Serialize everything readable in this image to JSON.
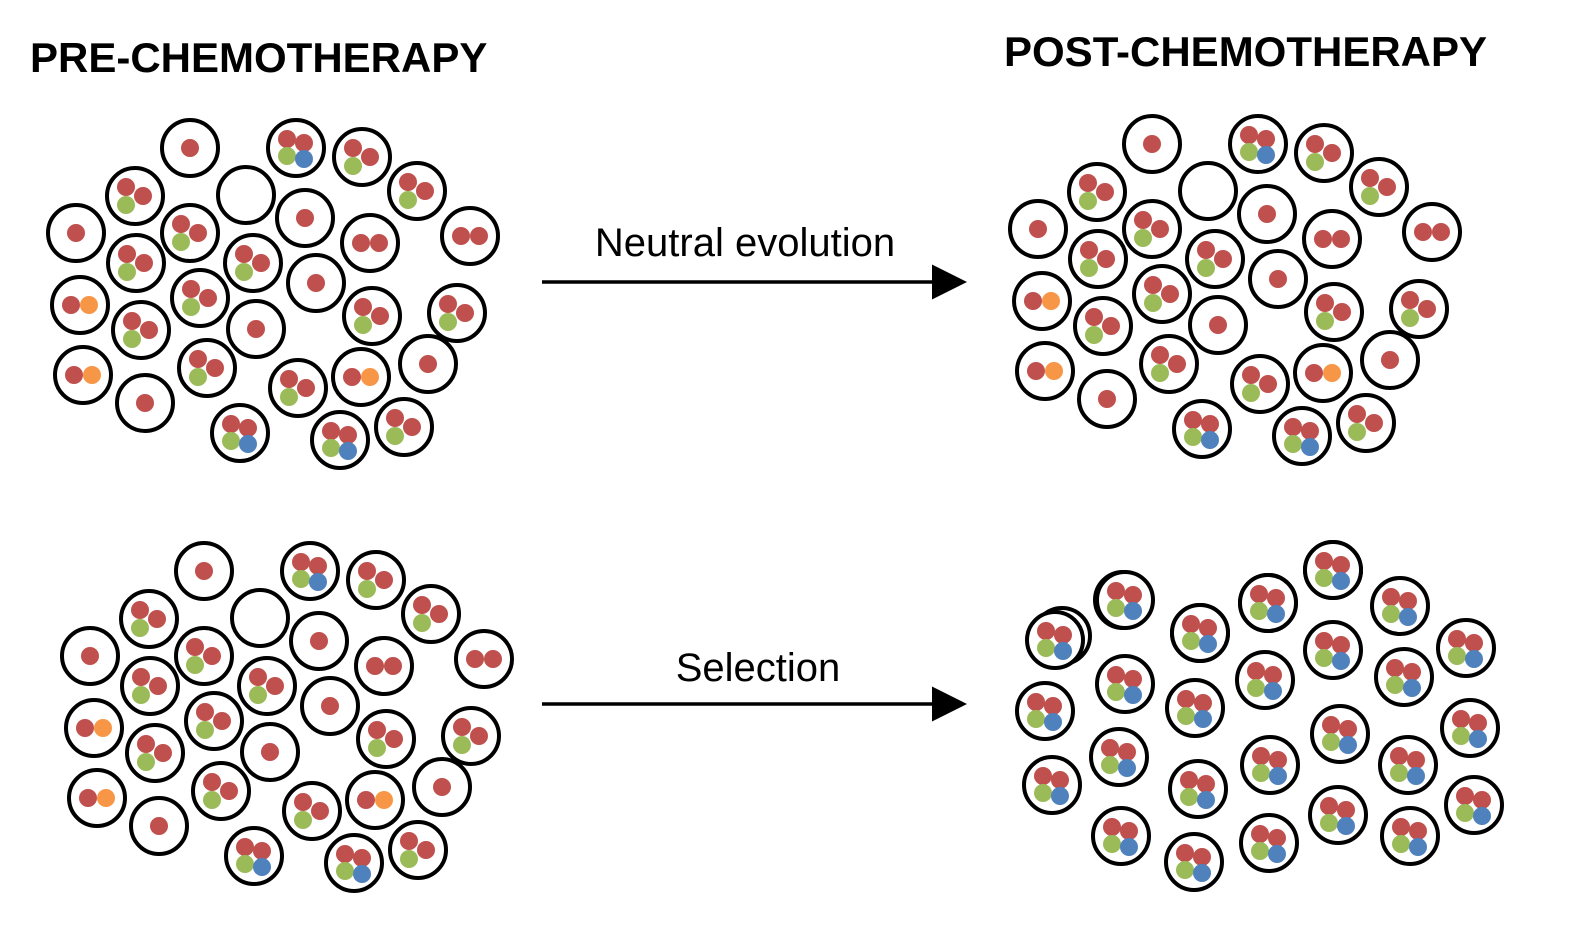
{
  "headings": {
    "pre": "PRE-CHEMOTHERAPY",
    "post": "POST-CHEMOTHERAPY"
  },
  "arrows": {
    "top": "Neutral evolution",
    "bottom": "Selection"
  },
  "colors": {
    "cell_outline": "#000000",
    "red_mutation": "#c0504d",
    "green_mutation": "#9bbb59",
    "blue_mutation": "#4f81bd",
    "orange_mutation": "#f79646"
  },
  "cell_types": {
    "empty": [],
    "R": [
      "red"
    ],
    "RR": [
      "red",
      "red"
    ],
    "RG": [
      "red",
      "green"
    ],
    "RO": [
      "red",
      "orange"
    ],
    "RRG": [
      "red",
      "red",
      "green"
    ],
    "RRGB": [
      "red",
      "red",
      "green",
      "blue"
    ]
  },
  "populations": {
    "pre_neutral": [
      "R",
      "RRGB",
      "RRG",
      "RRG",
      "empty",
      "RRG",
      "RRG",
      "R",
      "RR",
      "R",
      "RRG",
      "RR",
      "RRG",
      "R",
      "RO",
      "RRG",
      "RRG",
      "R",
      "RRG",
      "RRG",
      "RO",
      "RRG",
      "RO",
      "R",
      "R",
      "RRGB",
      "RRG",
      "RRGB",
      "RRG"
    ],
    "post_neutral": [
      "R",
      "RRGB",
      "RRG",
      "RRG",
      "empty",
      "RRG",
      "RRG",
      "R",
      "RR",
      "R",
      "RRG",
      "RR",
      "RRG",
      "R",
      "RO",
      "RRG",
      "RRG",
      "R",
      "RRG",
      "RRG",
      "RO",
      "RRG",
      "RO",
      "R",
      "R",
      "RRGB",
      "RRG",
      "RRGB",
      "RRG"
    ],
    "pre_selection": [
      "R",
      "RRGB",
      "RRG",
      "RRG",
      "empty",
      "RRG",
      "RRG",
      "R",
      "RR",
      "R",
      "RRG",
      "RR",
      "RRG",
      "R",
      "RO",
      "RRG",
      "RRG",
      "R",
      "RRG",
      "RRG",
      "RO",
      "RRG",
      "RO",
      "R",
      "R",
      "RRGB",
      "RRG",
      "RRGB",
      "RRG"
    ],
    "post_selection": [
      "RRGB",
      "RRGB",
      "RRGB",
      "RRGB",
      "RRGB",
      "RRGB",
      "RRGB",
      "RRGB",
      "RRGB",
      "RRGB",
      "RRGB",
      "RRGB",
      "RRGB",
      "RRGB",
      "RRGB",
      "RRGB",
      "RRGB",
      "RRGB",
      "RRGB",
      "RRGB",
      "RRGB",
      "RRGB",
      "RRGB",
      "RRGB",
      "RRGB",
      "RRGB",
      "RRGB",
      "RRGB",
      "RRGB",
      "RRGB",
      "RRGB"
    ]
  }
}
